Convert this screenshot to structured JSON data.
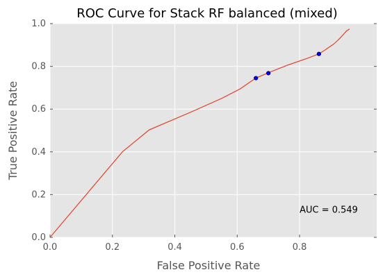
{
  "chart_data": {
    "type": "line",
    "title": "ROC Curve for Stack RF balanced (mixed)",
    "xlabel": "False Positive Rate",
    "ylabel": "True Positive Rate",
    "xlim": [
      0.0,
      1.0
    ],
    "ylim": [
      0.0,
      1.0
    ],
    "grid": true,
    "background": "#e5e5e5",
    "x_ticks": [
      "0.0",
      "0.2",
      "0.4",
      "0.6",
      "0.8"
    ],
    "y_ticks": [
      "0.0",
      "0.2",
      "0.4",
      "0.6",
      "0.8",
      "1.0"
    ],
    "series": [
      {
        "color": "#e24a33",
        "x": [
          0.0,
          0.232,
          0.318,
          0.45,
          0.55,
          0.61,
          0.66,
          0.7,
          0.76,
          0.82,
          0.862,
          0.88,
          0.9,
          0.91,
          0.925,
          0.94,
          0.95,
          0.96
        ],
        "y": [
          0.0,
          0.4,
          0.503,
          0.585,
          0.65,
          0.695,
          0.745,
          0.77,
          0.805,
          0.835,
          0.858,
          0.875,
          0.895,
          0.905,
          0.925,
          0.948,
          0.965,
          0.975
        ]
      }
    ],
    "markers": {
      "color": "#0000ff",
      "x": [
        0.66,
        0.7,
        0.862
      ],
      "y": [
        0.745,
        0.768,
        0.858
      ]
    },
    "annotation": {
      "text": "AUC = 0.549",
      "x": 0.8,
      "y": 0.115
    }
  }
}
